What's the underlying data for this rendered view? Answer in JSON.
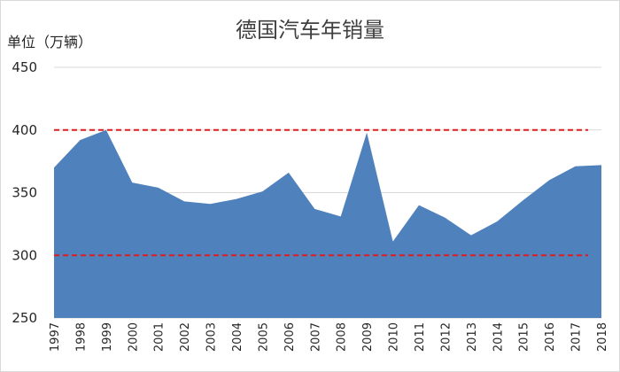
{
  "chart_data": {
    "type": "area",
    "title": "德国汽车年销量",
    "ylabel": "单位（万辆）",
    "xlabel": "",
    "ylim": [
      250,
      450
    ],
    "yticks": [
      250,
      300,
      350,
      400,
      450
    ],
    "grid": true,
    "legend": "none",
    "categories": [
      "1997",
      "1998",
      "1999",
      "2000",
      "2001",
      "2002",
      "2003",
      "2004",
      "2005",
      "2006",
      "2007",
      "2008",
      "2009",
      "2010",
      "2011",
      "2012",
      "2013",
      "2014",
      "2015",
      "2016",
      "2017",
      "2018"
    ],
    "series": [
      {
        "values": [
          370,
          392,
          400,
          358,
          354,
          343,
          341,
          345,
          351,
          366,
          337,
          331,
          398,
          311,
          340,
          330,
          316,
          327,
          344,
          360,
          371,
          372
        ],
        "color": "#4f81bd"
      }
    ],
    "reference_lines": [
      {
        "y": 400,
        "color": "#e41a1c",
        "style": "dashed"
      },
      {
        "y": 300,
        "color": "#e41a1c",
        "style": "dashed"
      }
    ]
  }
}
